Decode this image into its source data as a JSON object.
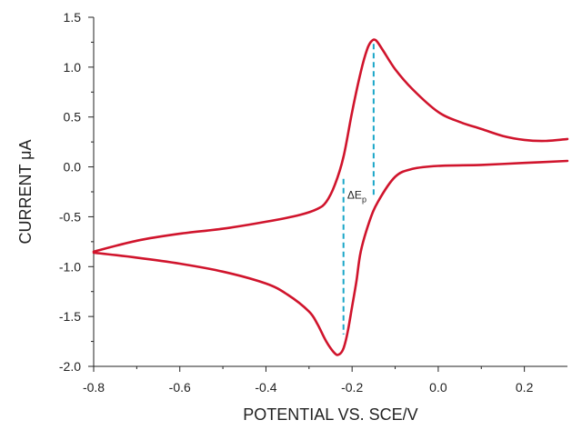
{
  "chart_data": {
    "type": "line",
    "xlabel": "POTENTIAL VS. SCE/V",
    "ylabel": "CURRENT μA",
    "xlim": [
      -0.8,
      0.3
    ],
    "ylim": [
      -2.0,
      1.5
    ],
    "x_ticks": [
      -0.8,
      -0.6,
      -0.4,
      -0.2,
      0.0,
      0.2
    ],
    "x_tick_labels": [
      "-0.8",
      "-0.6",
      "-0.4",
      "-0.2",
      "0.0",
      "0.2"
    ],
    "y_ticks": [
      1.5,
      1.0,
      0.5,
      0.0,
      -0.5,
      -1.0,
      -1.5,
      -2.0
    ],
    "y_tick_labels": [
      "1.5",
      "1.0",
      "0.5",
      "0.0",
      "-0.5",
      "-1.0",
      "-1.5",
      "-2.0"
    ],
    "grid": false,
    "line_color": "#d0142c",
    "annotation_color": "#1aa6c8",
    "series": [
      {
        "points": [
          [
            -0.8,
            -0.85
          ],
          [
            -0.7,
            -0.74
          ],
          [
            -0.6,
            -0.67
          ],
          [
            -0.5,
            -0.62
          ],
          [
            -0.4,
            -0.55
          ],
          [
            -0.32,
            -0.48
          ],
          [
            -0.28,
            -0.42
          ],
          [
            -0.26,
            -0.35
          ],
          [
            -0.24,
            -0.18
          ],
          [
            -0.22,
            0.1
          ],
          [
            -0.2,
            0.55
          ],
          [
            -0.18,
            0.95
          ],
          [
            -0.165,
            1.18
          ],
          [
            -0.155,
            1.26
          ],
          [
            -0.145,
            1.27
          ],
          [
            -0.13,
            1.18
          ],
          [
            -0.1,
            0.98
          ],
          [
            -0.06,
            0.78
          ],
          [
            0.0,
            0.55
          ],
          [
            0.05,
            0.45
          ],
          [
            0.1,
            0.38
          ],
          [
            0.15,
            0.31
          ],
          [
            0.2,
            0.27
          ],
          [
            0.25,
            0.26
          ],
          [
            0.3,
            0.28
          ]
        ]
      },
      {
        "points": [
          [
            0.3,
            0.06
          ],
          [
            0.2,
            0.04
          ],
          [
            0.1,
            0.02
          ],
          [
            0.0,
            0.01
          ],
          [
            -0.06,
            -0.02
          ],
          [
            -0.1,
            -0.1
          ],
          [
            -0.14,
            -0.35
          ],
          [
            -0.16,
            -0.55
          ],
          [
            -0.18,
            -0.85
          ],
          [
            -0.19,
            -1.15
          ],
          [
            -0.2,
            -1.4
          ],
          [
            -0.21,
            -1.65
          ],
          [
            -0.22,
            -1.82
          ],
          [
            -0.23,
            -1.88
          ],
          [
            -0.24,
            -1.87
          ],
          [
            -0.26,
            -1.75
          ],
          [
            -0.28,
            -1.58
          ],
          [
            -0.3,
            -1.45
          ],
          [
            -0.35,
            -1.28
          ],
          [
            -0.4,
            -1.17
          ],
          [
            -0.5,
            -1.05
          ],
          [
            -0.6,
            -0.97
          ],
          [
            -0.7,
            -0.91
          ],
          [
            -0.8,
            -0.86
          ]
        ]
      }
    ],
    "annotations": [
      {
        "label": "ΔE",
        "subscript": "p",
        "x": -0.19,
        "y": -0.32
      }
    ],
    "markers": [
      {
        "x": -0.15,
        "y_from": -0.28,
        "y_to": 1.25
      },
      {
        "x": -0.22,
        "y_from": -0.12,
        "y_to": -1.68
      }
    ]
  }
}
